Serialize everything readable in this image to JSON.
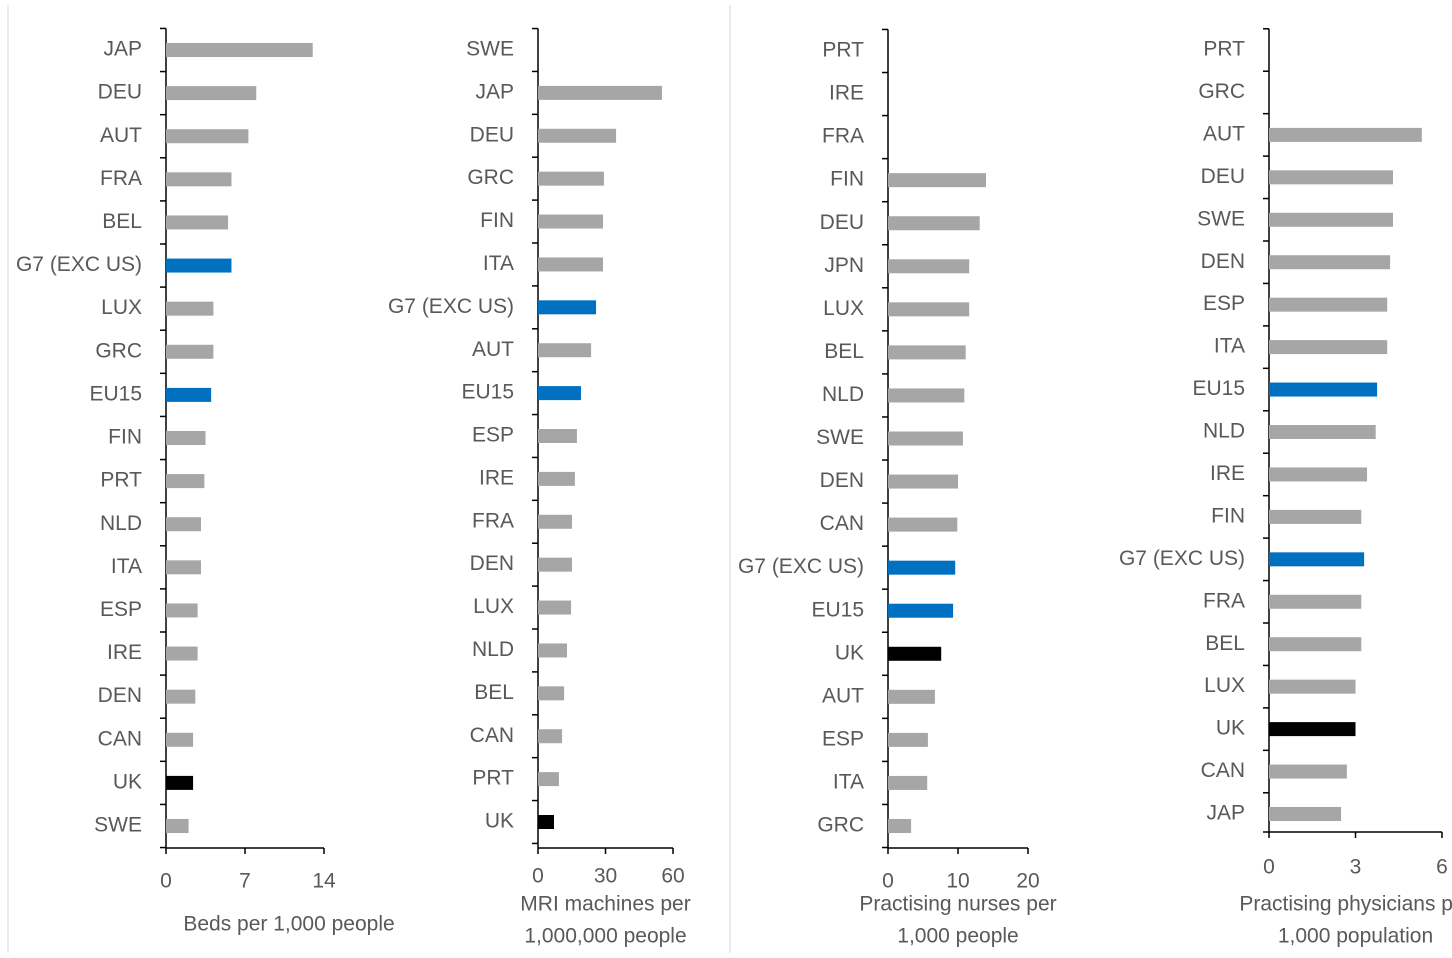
{
  "chart_data": [
    {
      "type": "barh",
      "x_label": [
        "Beds per 1,000 people"
      ],
      "categories": [
        "JAP",
        "DEU",
        "AUT",
        "FRA",
        "BEL",
        "G7 (EXC US)",
        "LUX",
        "GRC",
        "EU15",
        "FIN",
        "PRT",
        "NLD",
        "ITA",
        "ESP",
        "IRE",
        "DEN",
        "CAN",
        "UK",
        "SWE"
      ],
      "values": [
        13.0,
        8.0,
        7.3,
        5.8,
        5.5,
        5.8,
        4.2,
        4.2,
        4.0,
        3.5,
        3.4,
        3.1,
        3.1,
        2.8,
        2.8,
        2.6,
        2.4,
        2.4,
        2.0
      ],
      "colors": [
        "#a6a6a6",
        "#a6a6a6",
        "#a6a6a6",
        "#a6a6a6",
        "#a6a6a6",
        "#0070c0",
        "#a6a6a6",
        "#a6a6a6",
        "#0070c0",
        "#a6a6a6",
        "#a6a6a6",
        "#a6a6a6",
        "#a6a6a6",
        "#a6a6a6",
        "#a6a6a6",
        "#a6a6a6",
        "#a6a6a6",
        "#000000",
        "#a6a6a6"
      ],
      "xlim": [
        0,
        14
      ],
      "xticks": [
        0,
        7,
        14
      ]
    },
    {
      "type": "barh",
      "x_label": [
        "MRI machines per",
        "1,000,000 people"
      ],
      "categories": [
        "SWE",
        "JAP",
        "DEU",
        "GRC",
        "FIN",
        "ITA",
        "G7 (EXC US)",
        "AUT",
        "EU15",
        "ESP",
        "IRE",
        "FRA",
        "DEN",
        "LUX",
        "NLD",
        "BEL",
        "CAN",
        "PRT",
        "UK"
      ],
      "values": [
        null,
        55.1,
        34.7,
        29.3,
        28.9,
        28.9,
        25.8,
        23.6,
        19.1,
        17.3,
        16.4,
        15.1,
        15.1,
        14.7,
        12.9,
        11.6,
        10.7,
        9.3,
        7.1
      ],
      "colors": [
        "#a6a6a6",
        "#a6a6a6",
        "#a6a6a6",
        "#a6a6a6",
        "#a6a6a6",
        "#a6a6a6",
        "#0070c0",
        "#a6a6a6",
        "#0070c0",
        "#a6a6a6",
        "#a6a6a6",
        "#a6a6a6",
        "#a6a6a6",
        "#a6a6a6",
        "#a6a6a6",
        "#a6a6a6",
        "#a6a6a6",
        "#a6a6a6",
        "#000000"
      ],
      "xlim": [
        0,
        60
      ],
      "xticks": [
        0,
        30,
        60
      ]
    },
    {
      "type": "barh",
      "x_label": [
        "Practising nurses per",
        "1,000 people"
      ],
      "categories": [
        "PRT",
        "IRE",
        "FRA",
        "FIN",
        "DEU",
        "JPN",
        "LUX",
        "BEL",
        "NLD",
        "SWE",
        "DEN",
        "CAN",
        "G7 (EXC US)",
        "EU15",
        "UK",
        "AUT",
        "ESP",
        "ITA",
        "GRC"
      ],
      "values": [
        null,
        null,
        null,
        14.0,
        13.1,
        11.6,
        11.6,
        11.1,
        10.9,
        10.7,
        10.0,
        9.9,
        9.6,
        9.3,
        7.6,
        6.7,
        5.7,
        5.6,
        3.3
      ],
      "colors": [
        "#a6a6a6",
        "#a6a6a6",
        "#a6a6a6",
        "#a6a6a6",
        "#a6a6a6",
        "#a6a6a6",
        "#a6a6a6",
        "#a6a6a6",
        "#a6a6a6",
        "#a6a6a6",
        "#a6a6a6",
        "#a6a6a6",
        "#0070c0",
        "#0070c0",
        "#000000",
        "#a6a6a6",
        "#a6a6a6",
        "#a6a6a6",
        "#a6a6a6"
      ],
      "xlim": [
        0,
        20
      ],
      "xticks": [
        0,
        10,
        20
      ]
    },
    {
      "type": "barh",
      "x_label": [
        "Practising physicians per",
        "1,000 population"
      ],
      "categories": [
        "PRT",
        "GRC",
        "AUT",
        "DEU",
        "SWE",
        "DEN",
        "ESP",
        "ITA",
        "EU15",
        "NLD",
        "IRE",
        "FIN",
        "G7 (EXC US)",
        "FRA",
        "BEL",
        "LUX",
        "UK",
        "CAN",
        "JAP"
      ],
      "values": [
        null,
        null,
        5.3,
        4.3,
        4.3,
        4.2,
        4.1,
        4.1,
        3.75,
        3.7,
        3.4,
        3.2,
        3.3,
        3.2,
        3.2,
        3.0,
        3.0,
        2.7,
        2.5
      ],
      "colors": [
        "#a6a6a6",
        "#a6a6a6",
        "#a6a6a6",
        "#a6a6a6",
        "#a6a6a6",
        "#a6a6a6",
        "#a6a6a6",
        "#a6a6a6",
        "#0070c0",
        "#a6a6a6",
        "#a6a6a6",
        "#a6a6a6",
        "#0070c0",
        "#a6a6a6",
        "#a6a6a6",
        "#a6a6a6",
        "#000000",
        "#a6a6a6",
        "#a6a6a6"
      ],
      "xlim": [
        0,
        6
      ],
      "xticks": [
        0,
        3,
        6
      ]
    }
  ]
}
